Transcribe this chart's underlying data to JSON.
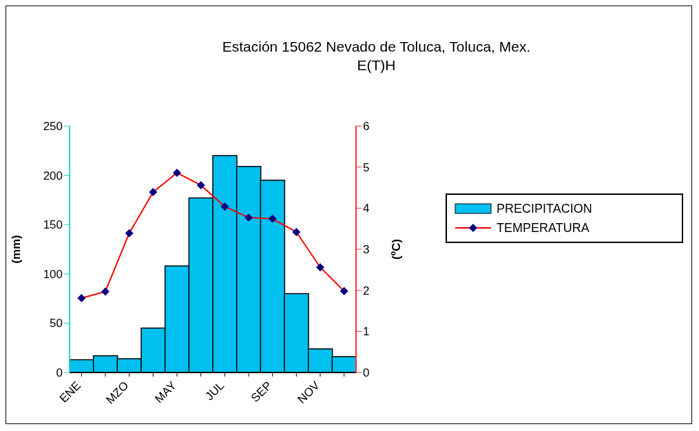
{
  "chart_data": {
    "type": "bar",
    "title": "Estación 15062 Nevado de Toluca, Toluca, Mex.",
    "subtitle": "E(T)H",
    "ylabel": "(mm)",
    "y2label": "(ºC)",
    "categories": [
      "ENE",
      null,
      "MZO",
      null,
      "MAY",
      null,
      "JUL",
      null,
      "SEP",
      null,
      "NOV",
      null
    ],
    "series": [
      {
        "name": "PRECIPITACION",
        "color": "#00c0ef",
        "values": [
          13,
          17,
          14,
          45,
          108,
          177,
          220,
          209,
          195,
          80,
          24,
          16
        ]
      },
      {
        "name": "TEMPERATURA",
        "type": "line",
        "axis": "y2",
        "color": "#ff0000",
        "marker": "diamond",
        "values": [
          1.81,
          1.97,
          3.39,
          4.39,
          4.86,
          4.56,
          4.04,
          3.77,
          3.74,
          3.42,
          2.56,
          1.98
        ]
      }
    ],
    "ylim": [
      0,
      250
    ],
    "yticks": [
      0,
      50,
      100,
      150,
      200,
      250
    ],
    "y2lim": [
      0,
      6
    ],
    "y2ticks": [
      0,
      1,
      2,
      3,
      4,
      5,
      6
    ],
    "grid": false,
    "legend": "right"
  }
}
